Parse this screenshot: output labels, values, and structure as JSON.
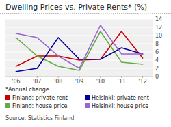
{
  "chart_data": {
    "type": "line",
    "title": "Dwelling Prices vs. Private Rents* (%)",
    "annotations": [
      "*Annual change",
      "Source: Statistics Finland"
    ],
    "categories": [
      "'06",
      "'07",
      "'08",
      "'09",
      "'10",
      "'11",
      "'12"
    ],
    "series": [
      {
        "name": "Finland: private rent",
        "color": "#cc0000",
        "values": [
          2.5,
          5.0,
          5.0,
          4.0,
          4.2,
          11.0,
          4.5
        ]
      },
      {
        "name": "Finland: house price",
        "color": "#66aa44",
        "values": [
          9.5,
          5.0,
          2.5,
          1.5,
          11.0,
          3.5,
          3.0
        ]
      },
      {
        "name": "Helsinki: private rent",
        "color": "#000099",
        "values": [
          1.2,
          2.0,
          9.5,
          4.2,
          4.2,
          7.0,
          5.5
        ]
      },
      {
        "name": "Helsinki: house price",
        "color": "#9966cc",
        "values": [
          10.5,
          9.5,
          5.0,
          2.0,
          12.5,
          5.5,
          5.5
        ]
      }
    ],
    "ylim": [
      0,
      14
    ],
    "yticks": [
      0,
      2,
      4,
      6,
      8,
      10,
      12,
      14
    ],
    "grid": true,
    "legend": "bottom"
  }
}
